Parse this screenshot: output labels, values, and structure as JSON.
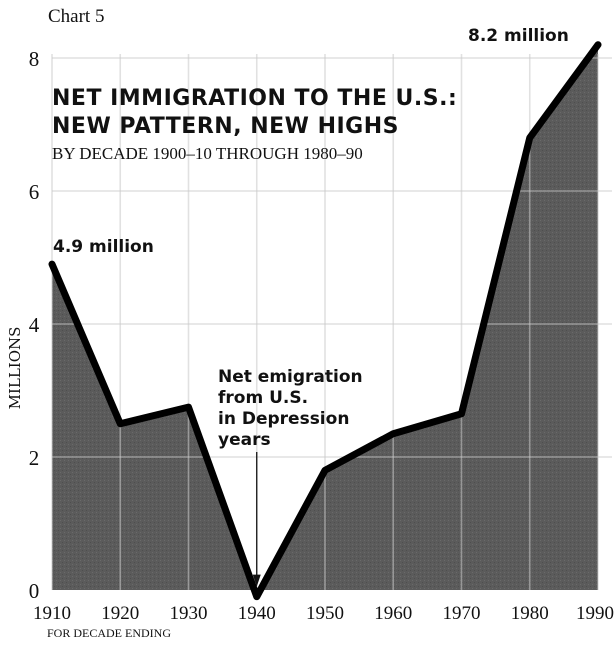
{
  "chart_label": "Chart 5",
  "chart_data": {
    "type": "area",
    "title": "NET IMMIGRATION TO THE U.S.: NEW PATTERN, NEW HIGHS",
    "title_lines": [
      "NET IMMIGRATION TO THE U.S.:",
      "NEW PATTERN, NEW HIGHS"
    ],
    "subtitle": "BY DECADE 1900–10 THROUGH 1980–90",
    "xlabel": "FOR DECADE ENDING",
    "ylabel": "MILLIONS",
    "x": [
      1910,
      1920,
      1930,
      1940,
      1950,
      1960,
      1970,
      1980,
      1990
    ],
    "values": [
      4.9,
      2.5,
      2.75,
      -0.1,
      1.8,
      2.35,
      2.65,
      6.8,
      8.2
    ],
    "xlim": [
      1910,
      1990
    ],
    "ylim": [
      0,
      8
    ],
    "xticks": [
      "1910",
      "1920",
      "1930",
      "1940",
      "1950",
      "1960",
      "1970",
      "1980",
      "1990"
    ],
    "yticks": [
      "0",
      "2",
      "4",
      "6",
      "8"
    ],
    "grid": true,
    "annotations": {
      "start": "4.9 million",
      "end": "8.2 million",
      "dip": [
        "Net emigration",
        "from U.S.",
        "in Depression",
        "years"
      ]
    },
    "colors": {
      "fill": "#5e5e5e",
      "line": "#000000",
      "grid": "#c9c9c9"
    }
  }
}
